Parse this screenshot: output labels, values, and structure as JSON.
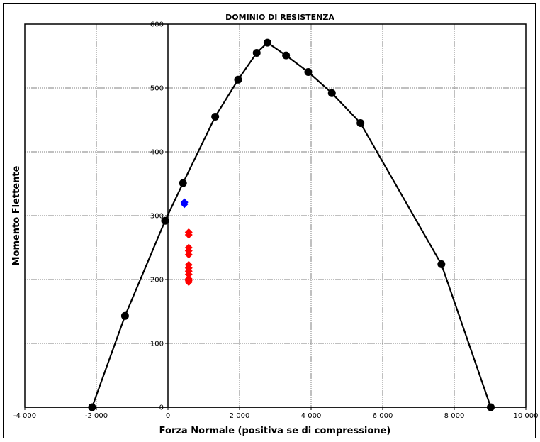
{
  "chart_data": {
    "type": "scatter",
    "title": "DOMINIO DI RESISTENZA",
    "xlabel": "Forza Normale (positiva se di compressione)",
    "ylabel": "Momento Flettente",
    "xlim": [
      -4000,
      10000
    ],
    "ylim": [
      0,
      600
    ],
    "x_ticks": [
      -4000,
      -2000,
      0,
      2000,
      4000,
      6000,
      8000,
      10000
    ],
    "x_tick_labels": [
      "-4 000",
      "-2 000",
      "0",
      "2 000",
      "4 000",
      "6 000",
      "8 000",
      "10 000"
    ],
    "y_ticks": [
      0,
      100,
      200,
      300,
      400,
      500,
      600
    ],
    "y_tick_labels": [
      "0",
      "100",
      "200",
      "300",
      "400",
      "500",
      "600"
    ],
    "grid": true,
    "series": [
      {
        "marker": "circle",
        "color": "#000000",
        "line": true,
        "x": [
          -2120,
          -1200,
          -80,
          420,
          1320,
          1960,
          2480,
          2780,
          3300,
          3920,
          4580,
          5380,
          7640,
          9020
        ],
        "y": [
          0,
          143,
          292,
          351,
          455,
          513,
          555,
          571,
          551,
          525,
          492,
          445,
          224,
          0
        ]
      },
      {
        "marker": "diamond",
        "color": "#0000ff",
        "line": false,
        "x": [
          460,
          460
        ],
        "y": [
          318,
          321
        ]
      },
      {
        "marker": "diamond",
        "color": "#ff0000",
        "line": false,
        "x": [
          580,
          580,
          580,
          580,
          580,
          580,
          580,
          580,
          580,
          580,
          580,
          580
        ],
        "y": [
          274,
          270,
          250,
          245,
          239,
          223,
          218,
          213,
          208,
          201,
          198,
          196
        ]
      }
    ]
  }
}
